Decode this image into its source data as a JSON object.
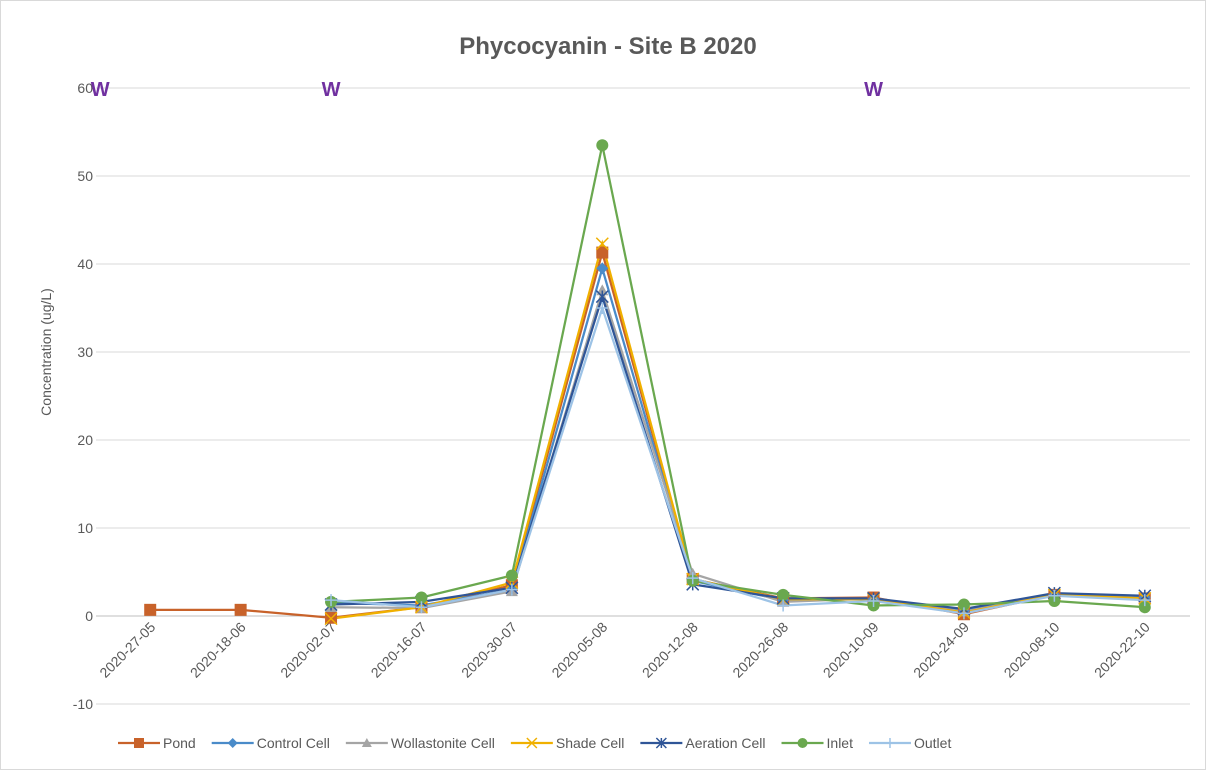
{
  "chart_data": {
    "type": "line",
    "title": "Phycocyanin - Site B 2020",
    "y_label": "Concentration (ug/L)",
    "categories": [
      "2020-27-05",
      "2020-18-06",
      "2020-02-07",
      "2020-16-07",
      "2020-30-07",
      "2020-05-08",
      "2020-12-08",
      "2020-26-08",
      "2020-10-09",
      "2020-24-09",
      "2020-08-10",
      "2020-22-10"
    ],
    "ylim": [
      -10,
      60
    ],
    "yticks": [
      -10,
      0,
      10,
      20,
      30,
      40,
      50,
      60
    ],
    "grid": true,
    "legend": "bottom",
    "annotations": [
      {
        "text": "W",
        "x": "2020-27-05",
        "y": 60
      },
      {
        "text": "W",
        "x": "2020-02-07",
        "y": 60
      },
      {
        "text": "W",
        "x": "2020-10-09",
        "y": 60
      }
    ],
    "series": [
      {
        "name": "Pond",
        "color": "#c8622a",
        "marker": "square",
        "values": [
          0.7,
          0.7,
          -0.2,
          1.0,
          3.5,
          41.3,
          4.2,
          2.0,
          2.1,
          0.2,
          2.4,
          2.0
        ]
      },
      {
        "name": "Control Cell",
        "color": "#4a8bc9",
        "marker": "diamond",
        "values": [
          null,
          null,
          1.5,
          1.2,
          3.0,
          39.5,
          4.0,
          1.8,
          1.9,
          0.6,
          2.4,
          2.1
        ]
      },
      {
        "name": "Wollastonite Cell",
        "color": "#a5a5a5",
        "marker": "triangle",
        "values": [
          null,
          null,
          1.0,
          0.9,
          2.8,
          37.0,
          4.8,
          1.6,
          2.0,
          0.5,
          2.5,
          2.0
        ]
      },
      {
        "name": "Shade Cell",
        "color": "#f0b000",
        "marker": "x",
        "values": [
          null,
          null,
          -0.3,
          1.0,
          3.8,
          42.3,
          4.2,
          1.9,
          1.9,
          0.4,
          2.4,
          2.0
        ]
      },
      {
        "name": "Aeration Cell",
        "color": "#2f5597",
        "marker": "star",
        "values": [
          null,
          null,
          1.3,
          1.6,
          3.2,
          36.3,
          3.6,
          2.0,
          2.0,
          0.8,
          2.6,
          2.3
        ]
      },
      {
        "name": "Inlet",
        "color": "#6aa84f",
        "marker": "circle",
        "values": [
          null,
          null,
          1.6,
          2.1,
          4.6,
          53.5,
          4.0,
          2.4,
          1.2,
          1.3,
          1.7,
          1.0
        ]
      },
      {
        "name": "Outlet",
        "color": "#9dc3e6",
        "marker": "plus",
        "values": [
          null,
          null,
          1.8,
          1.0,
          3.0,
          35.0,
          4.3,
          1.2,
          1.7,
          0.3,
          2.3,
          1.8
        ]
      }
    ]
  }
}
